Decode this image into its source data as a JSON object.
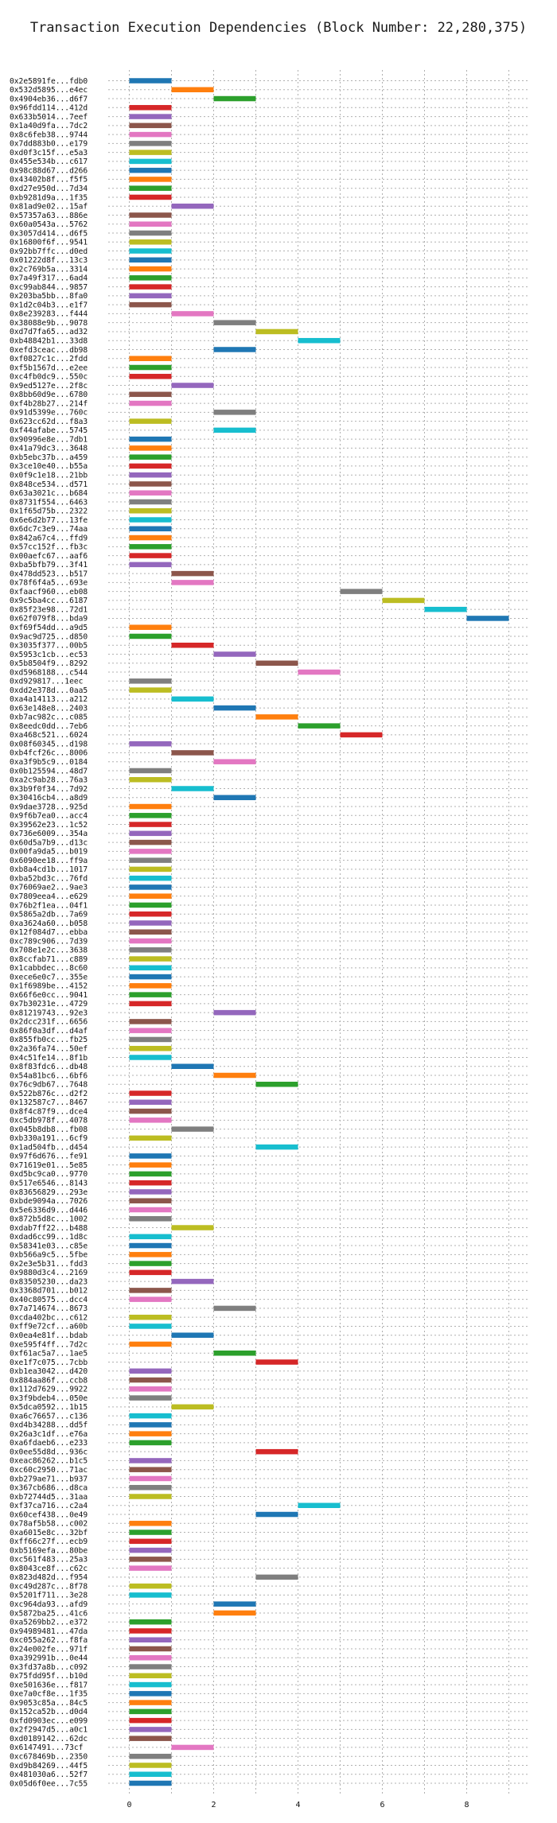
{
  "colors": [
    "#1f77b4",
    "#ff7f0e",
    "#2ca02c",
    "#d62728",
    "#9467bd",
    "#8c564b",
    "#e377c2",
    "#7f7f7f",
    "#bcbd22",
    "#17becf"
  ],
  "chart_data": {
    "type": "bar",
    "orientation": "horizontal",
    "title": "Transaction Execution Dependencies (Block Number: 22,280,375)",
    "xlabel": "",
    "ylabel": "",
    "xlim": [
      -0.5,
      9.5
    ],
    "xticks": [
      "0",
      "2",
      "4",
      "6",
      "8"
    ],
    "grid": true,
    "bar_width": 1,
    "transactions": [
      {
        "label": "0x2e5891fe...fdb0",
        "start": 0
      },
      {
        "label": "0x532d5895...e4ec",
        "start": 1
      },
      {
        "label": "0x4904eb36...d6f7",
        "start": 2
      },
      {
        "label": "0x96fdd114...412d",
        "start": 0
      },
      {
        "label": "0x633b5014...7eef",
        "start": 0
      },
      {
        "label": "0x1a40d9fa...7dc2",
        "start": 0
      },
      {
        "label": "0x8c6feb38...9744",
        "start": 0
      },
      {
        "label": "0x7dd883b0...e179",
        "start": 0
      },
      {
        "label": "0xd0f3c15f...e5a3",
        "start": 0
      },
      {
        "label": "0x455e534b...c617",
        "start": 0
      },
      {
        "label": "0x98c88d67...d266",
        "start": 0
      },
      {
        "label": "0x43402b8f...f5f5",
        "start": 0
      },
      {
        "label": "0xd27e950d...7d34",
        "start": 0
      },
      {
        "label": "0xb9281d9a...1f35",
        "start": 0
      },
      {
        "label": "0x81ad9e02...15af",
        "start": 1
      },
      {
        "label": "0x57357a63...886e",
        "start": 0
      },
      {
        "label": "0x60a0543a...5762",
        "start": 0
      },
      {
        "label": "0x3057d414...d6f5",
        "start": 0
      },
      {
        "label": "0x16800f6f...9541",
        "start": 0
      },
      {
        "label": "0x92bb7ffc...d0ed",
        "start": 0
      },
      {
        "label": "0x01222d8f...13c3",
        "start": 0
      },
      {
        "label": "0x2c769b5a...3314",
        "start": 0
      },
      {
        "label": "0x7a49f317...6ad4",
        "start": 0
      },
      {
        "label": "0xc99ab844...9857",
        "start": 0
      },
      {
        "label": "0x203ba5bb...8fa0",
        "start": 0
      },
      {
        "label": "0x1d2c04b3...e1f7",
        "start": 0
      },
      {
        "label": "0x8e239283...f444",
        "start": 1
      },
      {
        "label": "0x38088e9b...9078",
        "start": 2
      },
      {
        "label": "0xd7d7fa65...ad32",
        "start": 3
      },
      {
        "label": "0xb48842b1...33d8",
        "start": 4
      },
      {
        "label": "0xefd3ceac...db98",
        "start": 2
      },
      {
        "label": "0xf0827c1c...2fdd",
        "start": 0
      },
      {
        "label": "0xf5b1567d...e2ee",
        "start": 0
      },
      {
        "label": "0xc4fb0dc9...550c",
        "start": 0
      },
      {
        "label": "0x9ed5127e...2f8c",
        "start": 1
      },
      {
        "label": "0x8bb60d9e...6780",
        "start": 0
      },
      {
        "label": "0xf4b28b27...214f",
        "start": 0
      },
      {
        "label": "0x91d5399e...760c",
        "start": 2
      },
      {
        "label": "0x623cc62d...f8a3",
        "start": 0
      },
      {
        "label": "0xf44afabe...5745",
        "start": 2
      },
      {
        "label": "0x90996e8e...7db1",
        "start": 0
      },
      {
        "label": "0x41a79dc3...3648",
        "start": 0
      },
      {
        "label": "0xb5ebc37b...a459",
        "start": 0
      },
      {
        "label": "0x3ce10e40...b55a",
        "start": 0
      },
      {
        "label": "0x0f9c1e18...21bb",
        "start": 0
      },
      {
        "label": "0x848ce534...d571",
        "start": 0
      },
      {
        "label": "0x63a3021c...b684",
        "start": 0
      },
      {
        "label": "0x8731f554...6463",
        "start": 0
      },
      {
        "label": "0x1f65d75b...2322",
        "start": 0
      },
      {
        "label": "0x6e6d2b77...13fe",
        "start": 0
      },
      {
        "label": "0x6dc7c3e9...74aa",
        "start": 0
      },
      {
        "label": "0x842a67c4...ffd9",
        "start": 0
      },
      {
        "label": "0x57cc152f...fb3c",
        "start": 0
      },
      {
        "label": "0x00aefc67...aaf6",
        "start": 0
      },
      {
        "label": "0xba5bfb79...3f41",
        "start": 0
      },
      {
        "label": "0x478dd523...b517",
        "start": 1
      },
      {
        "label": "0x78f6f4a5...693e",
        "start": 1
      },
      {
        "label": "0xfaacf960...eb08",
        "start": 5
      },
      {
        "label": "0x9c5ba4cc...6187",
        "start": 6
      },
      {
        "label": "0x85f23e98...72d1",
        "start": 7
      },
      {
        "label": "0x62f079f8...bda9",
        "start": 8
      },
      {
        "label": "0xf69f54dd...a9d5",
        "start": 0
      },
      {
        "label": "0x9ac9d725...d850",
        "start": 0
      },
      {
        "label": "0x3035f377...00b5",
        "start": 1
      },
      {
        "label": "0x5953c1cb...ec53",
        "start": 2
      },
      {
        "label": "0x5b8504f9...8292",
        "start": 3
      },
      {
        "label": "0xd5968188...c544",
        "start": 4
      },
      {
        "label": "0xd929817...1eec",
        "start": 0
      },
      {
        "label": "0xdd2e378d...0aa5",
        "start": 0
      },
      {
        "label": "0xa4a14113...a212",
        "start": 1
      },
      {
        "label": "0x63e148e8...2403",
        "start": 2
      },
      {
        "label": "0xb7ac982c...c085",
        "start": 3
      },
      {
        "label": "0x8eedc0dd...7eb6",
        "start": 4
      },
      {
        "label": "0xa468c521...6024",
        "start": 5
      },
      {
        "label": "0x08f60345...d198",
        "start": 0
      },
      {
        "label": "0xb4fcf26c...8006",
        "start": 1
      },
      {
        "label": "0xa3f9b5c9...0184",
        "start": 2
      },
      {
        "label": "0x0b125594...48d7",
        "start": 0
      },
      {
        "label": "0xa2c9ab28...76a3",
        "start": 0
      },
      {
        "label": "0x3b9f0f34...7d92",
        "start": 1
      },
      {
        "label": "0x30416cb4...a8d9",
        "start": 2
      },
      {
        "label": "0x9dae3728...925d",
        "start": 0
      },
      {
        "label": "0x9f6b7ea0...acc4",
        "start": 0
      },
      {
        "label": "0x39562e23...1c52",
        "start": 0
      },
      {
        "label": "0x736e6009...354a",
        "start": 0
      },
      {
        "label": "0x60d5a7b9...d13c",
        "start": 0
      },
      {
        "label": "0x00fa9da5...b019",
        "start": 0
      },
      {
        "label": "0x6090ee18...ff9a",
        "start": 0
      },
      {
        "label": "0xb8a4cd1b...1017",
        "start": 0
      },
      {
        "label": "0xba52bd3c...76fd",
        "start": 0
      },
      {
        "label": "0x76069ae2...9ae3",
        "start": 0
      },
      {
        "label": "0x7809eea4...e629",
        "start": 0
      },
      {
        "label": "0x76b2f1ea...04f1",
        "start": 0
      },
      {
        "label": "0x5865a2db...7a69",
        "start": 0
      },
      {
        "label": "0xa3624a60...b058",
        "start": 0
      },
      {
        "label": "0x12f084d7...ebba",
        "start": 0
      },
      {
        "label": "0xc789c906...7d39",
        "start": 0
      },
      {
        "label": "0x708e1e2c...3638",
        "start": 0
      },
      {
        "label": "0x8ccfab71...c889",
        "start": 0
      },
      {
        "label": "0x1cabbdec...8c60",
        "start": 0
      },
      {
        "label": "0xece6e0c7...355e",
        "start": 0
      },
      {
        "label": "0x1f6989be...4152",
        "start": 0
      },
      {
        "label": "0x66f6e0cc...9041",
        "start": 0
      },
      {
        "label": "0x7b30231e...4729",
        "start": 0
      },
      {
        "label": "0x81219743...92e3",
        "start": 2
      },
      {
        "label": "0x2dcc231f...6656",
        "start": 0
      },
      {
        "label": "0x86f0a3df...d4af",
        "start": 0
      },
      {
        "label": "0x855fb0cc...fb25",
        "start": 0
      },
      {
        "label": "0x2a36fa74...50ef",
        "start": 0
      },
      {
        "label": "0x4c51fe14...8f1b",
        "start": 0
      },
      {
        "label": "0x8f83fdc6...db48",
        "start": 1
      },
      {
        "label": "0x54a81bc6...6bf6",
        "start": 2
      },
      {
        "label": "0x76c9db67...7648",
        "start": 3
      },
      {
        "label": "0x522b876c...d2f2",
        "start": 0
      },
      {
        "label": "0x132587c7...8467",
        "start": 0
      },
      {
        "label": "0x8f4c87f9...dce4",
        "start": 0
      },
      {
        "label": "0xc5db978f...4078",
        "start": 0
      },
      {
        "label": "0x045b8db8...fb08",
        "start": 1
      },
      {
        "label": "0xb330a191...6cf9",
        "start": 0
      },
      {
        "label": "0x1ad504fb...d454",
        "start": 3
      },
      {
        "label": "0x97f6d676...fe91",
        "start": 0
      },
      {
        "label": "0x71619e01...5e85",
        "start": 0
      },
      {
        "label": "0xd5bc9ca0...9770",
        "start": 0
      },
      {
        "label": "0x517e6546...8143",
        "start": 0
      },
      {
        "label": "0x83656829...293e",
        "start": 0
      },
      {
        "label": "0xbde9094a...7026",
        "start": 0
      },
      {
        "label": "0x5e6336d9...d446",
        "start": 0
      },
      {
        "label": "0x872b5d8c...1002",
        "start": 0
      },
      {
        "label": "0xdab7ff22...b488",
        "start": 1
      },
      {
        "label": "0xdad6cc99...1d8c",
        "start": 0
      },
      {
        "label": "0x58341e03...c85e",
        "start": 0
      },
      {
        "label": "0xb566a9c5...5fbe",
        "start": 0
      },
      {
        "label": "0x2e3e5b31...fdd3",
        "start": 0
      },
      {
        "label": "0x9880d3c4...2169",
        "start": 0
      },
      {
        "label": "0x83505230...da23",
        "start": 1
      },
      {
        "label": "0x3368d701...b012",
        "start": 0
      },
      {
        "label": "0x40c80575...dcc4",
        "start": 0
      },
      {
        "label": "0x7a714674...8673",
        "start": 2
      },
      {
        "label": "0xcda402bc...c612",
        "start": 0
      },
      {
        "label": "0xff9e72cf...a60b",
        "start": 0
      },
      {
        "label": "0x0ea4e81f...bdab",
        "start": 1
      },
      {
        "label": "0xe595f4ff...7d2c",
        "start": 0
      },
      {
        "label": "0xf61ac5a7...1ae5",
        "start": 2
      },
      {
        "label": "0xe1f7c075...7cbb",
        "start": 3
      },
      {
        "label": "0xb1ea3042...d420",
        "start": 0
      },
      {
        "label": "0x884aa86f...ccb8",
        "start": 0
      },
      {
        "label": "0x112d7629...9922",
        "start": 0
      },
      {
        "label": "0x3f9bdeb4...050e",
        "start": 0
      },
      {
        "label": "0x5dca0592...1b15",
        "start": 1
      },
      {
        "label": "0xa6c76657...c136",
        "start": 0
      },
      {
        "label": "0xd4b34288...dd5f",
        "start": 0
      },
      {
        "label": "0x26a3c1df...e76a",
        "start": 0
      },
      {
        "label": "0xa6fdaeb6...e233",
        "start": 0
      },
      {
        "label": "0x0ee55d8d...936c",
        "start": 3
      },
      {
        "label": "0xeac86262...b1c5",
        "start": 0
      },
      {
        "label": "0xc60c2950...71ac",
        "start": 0
      },
      {
        "label": "0xb279ae71...b937",
        "start": 0
      },
      {
        "label": "0x367cb686...d8ca",
        "start": 0
      },
      {
        "label": "0xb72744d5...31aa",
        "start": 0
      },
      {
        "label": "0xf37ca716...c2a4",
        "start": 4
      },
      {
        "label": "0x60cef438...0e49",
        "start": 3
      },
      {
        "label": "0x78af5b58...c002",
        "start": 0
      },
      {
        "label": "0xa6015e8c...32bf",
        "start": 0
      },
      {
        "label": "0xff66c27f...ecb9",
        "start": 0
      },
      {
        "label": "0xb5169efa...80be",
        "start": 0
      },
      {
        "label": "0xc561f483...25a3",
        "start": 0
      },
      {
        "label": "0x8043ce8f...c62c",
        "start": 0
      },
      {
        "label": "0x823d482d...f954",
        "start": 3
      },
      {
        "label": "0xc49d287c...8f78",
        "start": 0
      },
      {
        "label": "0x5201f711...3e28",
        "start": 0
      },
      {
        "label": "0xc964da93...afd9",
        "start": 2
      },
      {
        "label": "0x5872ba25...41c6",
        "start": 2
      },
      {
        "label": "0xa5269bb2...e372",
        "start": 0
      },
      {
        "label": "0x94989481...47da",
        "start": 0
      },
      {
        "label": "0xc055a262...f8fa",
        "start": 0
      },
      {
        "label": "0x24e002fe...971f",
        "start": 0
      },
      {
        "label": "0xa392991b...0e44",
        "start": 0
      },
      {
        "label": "0x3fd37a8b...c092",
        "start": 0
      },
      {
        "label": "0x75fdd95f...b10d",
        "start": 0
      },
      {
        "label": "0xe501636e...f817",
        "start": 0
      },
      {
        "label": "0xe7a0cf8e...1f35",
        "start": 0
      },
      {
        "label": "0x9053c85a...84c5",
        "start": 0
      },
      {
        "label": "0x152ca52b...d0d4",
        "start": 0
      },
      {
        "label": "0xfd0903ec...e099",
        "start": 0
      },
      {
        "label": "0x2f2947d5...a0c1",
        "start": 0
      },
      {
        "label": "0xd0189142...62dc",
        "start": 0
      },
      {
        "label": "0x6147491...73cf",
        "start": 1
      },
      {
        "label": "0xc678469b...2350",
        "start": 0
      },
      {
        "label": "0xd9b84269...44f5",
        "start": 0
      },
      {
        "label": "0x481030a6...52f7",
        "start": 0
      },
      {
        "label": "0x05d6f0ee...7c55",
        "start": 0
      }
    ]
  }
}
